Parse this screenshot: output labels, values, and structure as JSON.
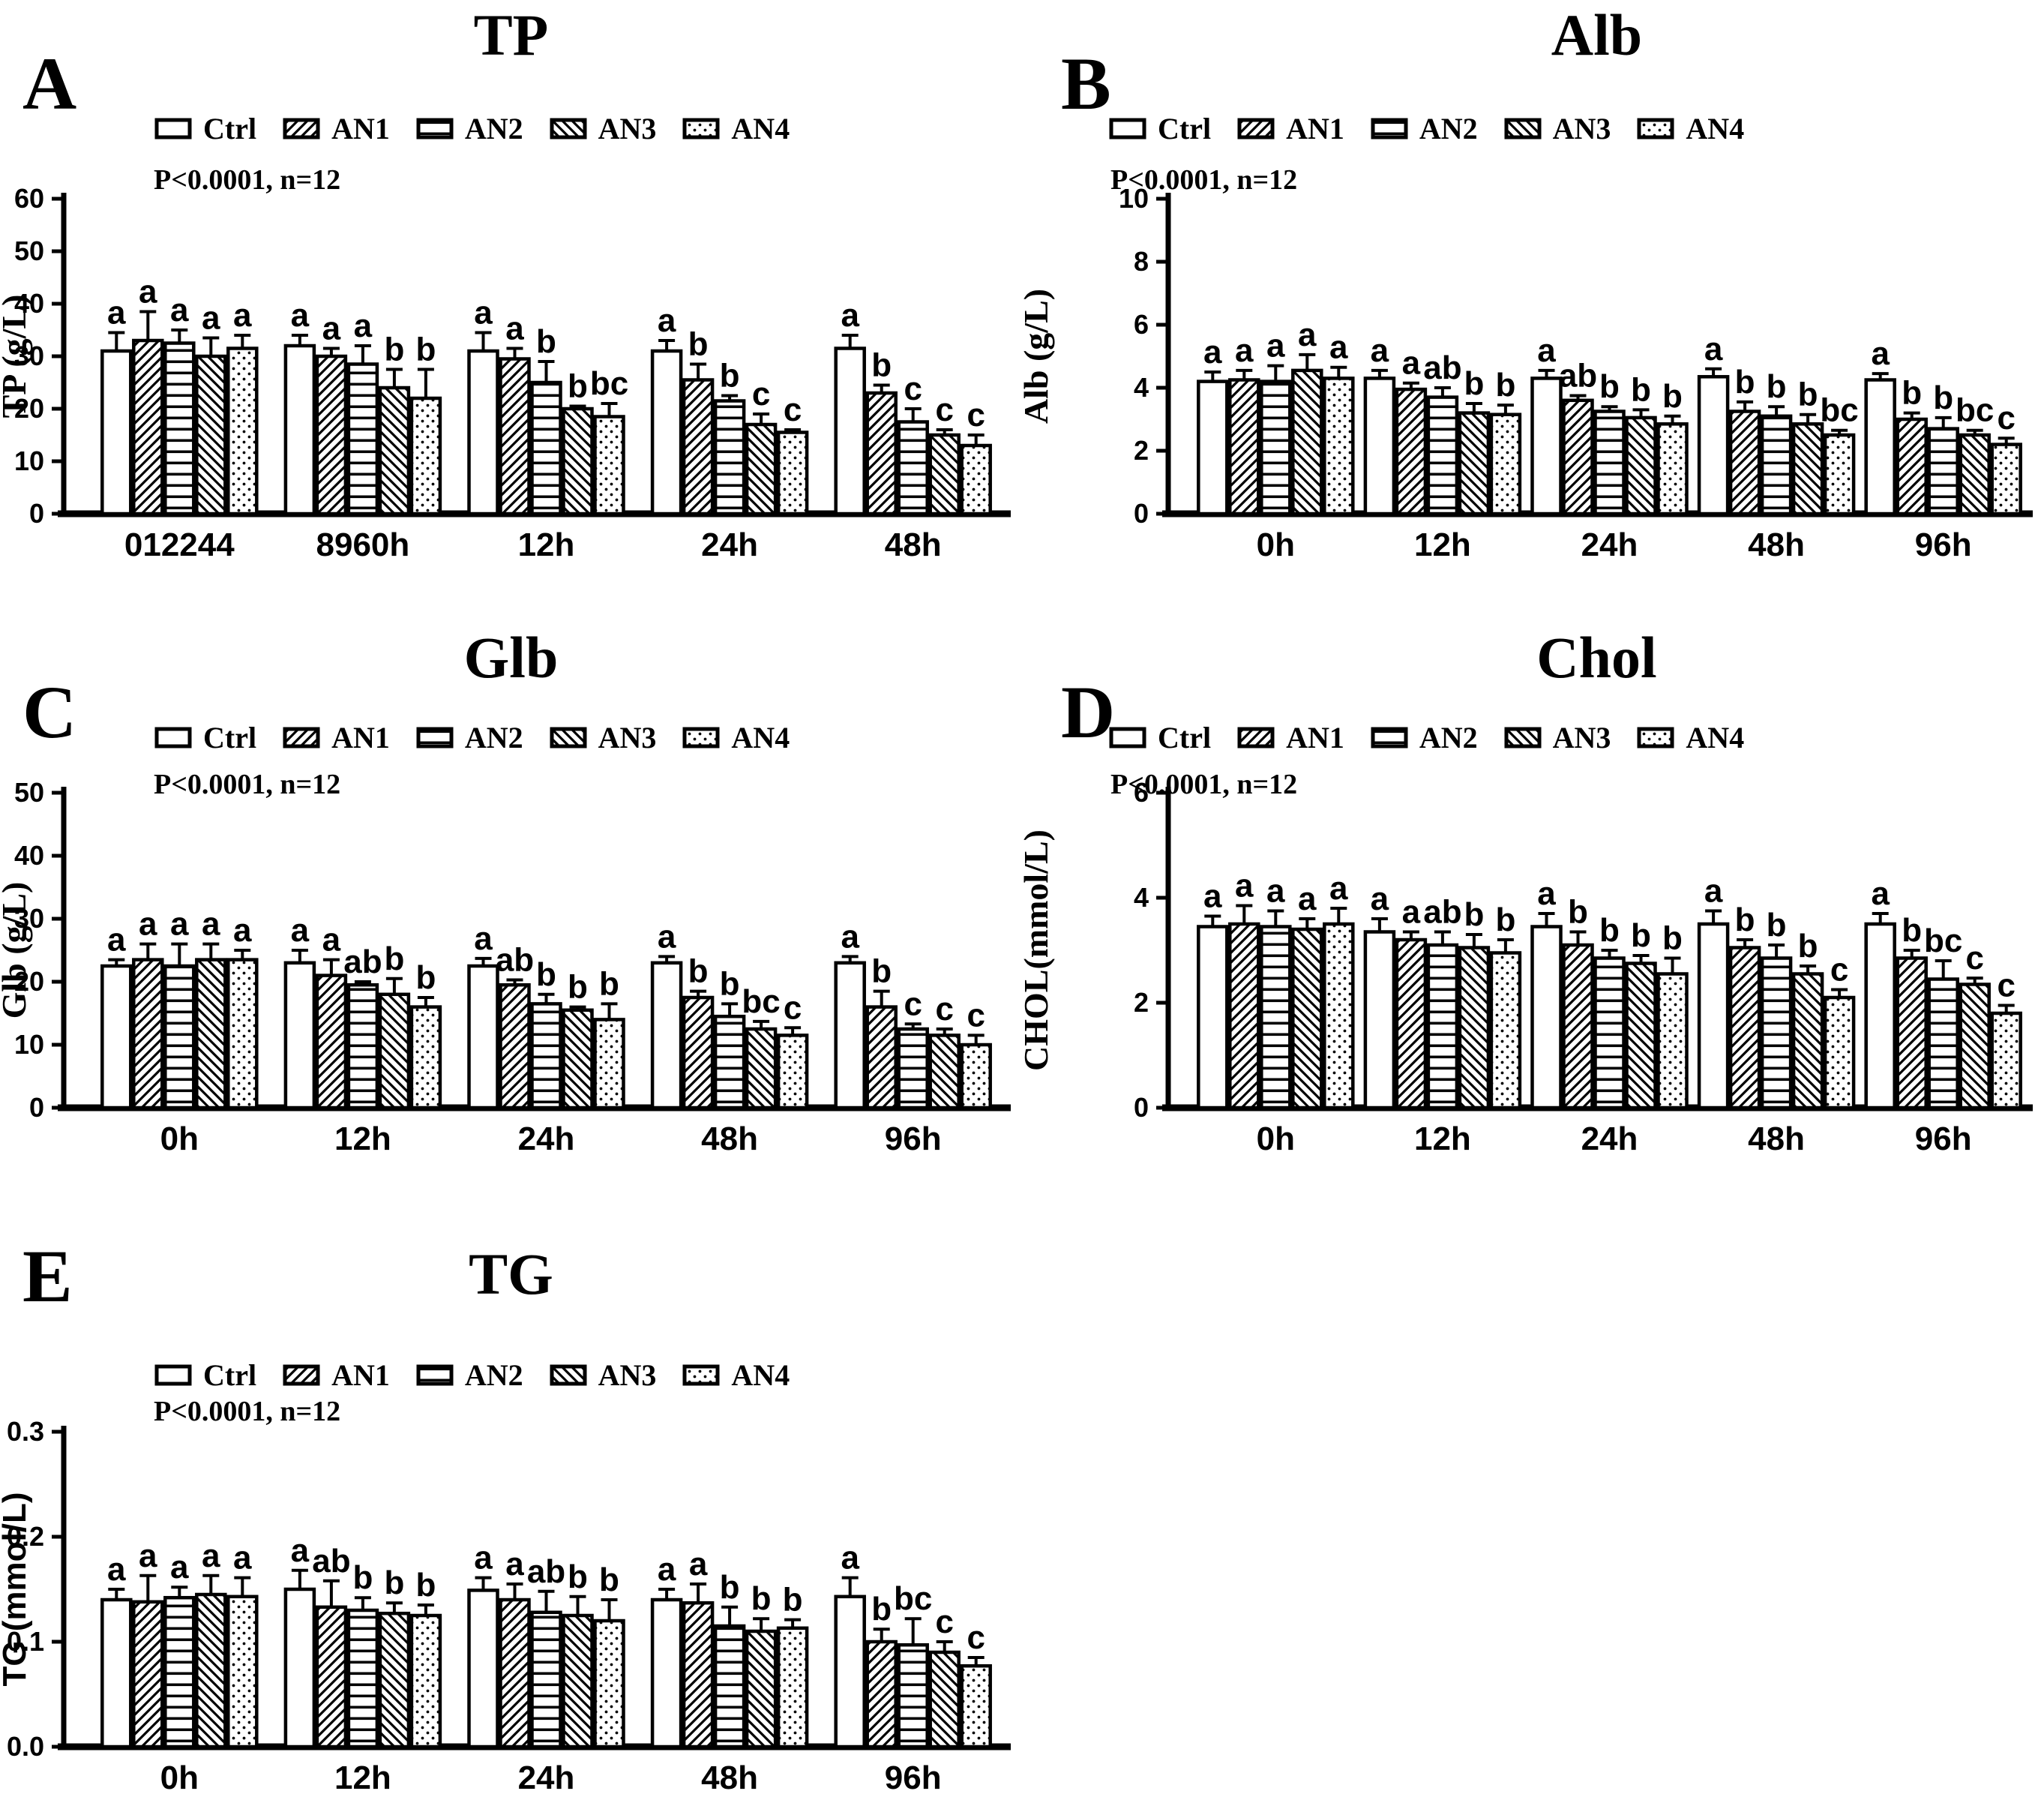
{
  "figure": {
    "pnote": "P<0.0001, n=12",
    "legend": {
      "items": [
        {
          "label": "Ctrl",
          "pattern": "plain"
        },
        {
          "label": "AN1",
          "pattern": "diag-up"
        },
        {
          "label": "AN2",
          "pattern": "hlines"
        },
        {
          "label": "AN3",
          "pattern": "diag-down"
        },
        {
          "label": "AN4",
          "pattern": "dots"
        }
      ]
    },
    "colors": {
      "ink": "#000000",
      "background": "#ffffff"
    }
  },
  "chart_data": [
    {
      "panel": "A",
      "type": "bar",
      "title": "TP",
      "ylabel": "TP (g/L)",
      "ylabel_style": "serif",
      "ylim": [
        0,
        60
      ],
      "ytick_values": [
        0,
        10,
        20,
        30,
        40,
        50,
        60
      ],
      "ytick_labels": [
        "0",
        "10",
        "20",
        "30",
        "40",
        "50",
        "60"
      ],
      "grid": false,
      "legend_position": "top",
      "categories": [
        "012244",
        "8960h",
        "12h",
        "24h",
        "48h"
      ],
      "series": [
        {
          "name": "Ctrl",
          "pattern": "plain",
          "values": [
            31,
            32,
            31,
            31,
            31.5
          ],
          "errors": [
            3.5,
            2,
            3.5,
            2,
            2.5
          ],
          "letters": [
            "a",
            "a",
            "a",
            "a",
            "a"
          ]
        },
        {
          "name": "AN1",
          "pattern": "diag-up",
          "values": [
            33,
            30,
            29.5,
            25.5,
            23
          ],
          "errors": [
            5.5,
            1.5,
            2,
            3,
            1.5
          ],
          "letters": [
            "a",
            "a",
            "a",
            "b",
            "b"
          ]
        },
        {
          "name": "AN2",
          "pattern": "hlines",
          "values": [
            32.5,
            28.5,
            25,
            21.5,
            17.5
          ],
          "errors": [
            2.5,
            3.5,
            4,
            1,
            2.5
          ],
          "letters": [
            "a",
            "a",
            "b",
            "b",
            "c"
          ]
        },
        {
          "name": "AN3",
          "pattern": "diag-down",
          "values": [
            30,
            24,
            20,
            17,
            15
          ],
          "errors": [
            3.5,
            3.5,
            0.5,
            2,
            1
          ],
          "letters": [
            "a",
            "b",
            "b",
            "c",
            "c"
          ]
        },
        {
          "name": "AN4",
          "pattern": "dots",
          "values": [
            31.5,
            22,
            18.5,
            15.5,
            13
          ],
          "errors": [
            2.5,
            5.5,
            2.5,
            0.5,
            2
          ],
          "letters": [
            "a",
            "b",
            "bc",
            "c",
            "c"
          ]
        }
      ]
    },
    {
      "panel": "B",
      "type": "bar",
      "title": "Alb",
      "ylabel": "Alb (g/L)",
      "ylabel_style": "serif",
      "ylim": [
        0,
        10
      ],
      "ytick_values": [
        0,
        2,
        4,
        6,
        8,
        10
      ],
      "ytick_labels": [
        "0",
        "2",
        "4",
        "6",
        "8",
        "10"
      ],
      "grid": false,
      "legend_position": "top",
      "categories": [
        "0h",
        "12h",
        "24h",
        "48h",
        "96h"
      ],
      "series": [
        {
          "name": "Ctrl",
          "pattern": "plain",
          "values": [
            4.2,
            4.3,
            4.3,
            4.35,
            4.25
          ],
          "errors": [
            0.3,
            0.25,
            0.25,
            0.25,
            0.2
          ],
          "letters": [
            "a",
            "a",
            "a",
            "a",
            "a"
          ]
        },
        {
          "name": "AN1",
          "pattern": "diag-up",
          "values": [
            4.25,
            3.95,
            3.6,
            3.25,
            3.0
          ],
          "errors": [
            0.3,
            0.2,
            0.15,
            0.3,
            0.2
          ],
          "letters": [
            "a",
            "a",
            "ab",
            "b",
            "b"
          ]
        },
        {
          "name": "AN2",
          "pattern": "hlines",
          "values": [
            4.2,
            3.7,
            3.25,
            3.1,
            2.7
          ],
          "errors": [
            0.5,
            0.3,
            0.15,
            0.3,
            0.35
          ],
          "letters": [
            "a",
            "ab",
            "b",
            "b",
            "b"
          ]
        },
        {
          "name": "AN3",
          "pattern": "diag-down",
          "values": [
            4.55,
            3.2,
            3.05,
            2.85,
            2.5
          ],
          "errors": [
            0.5,
            0.3,
            0.25,
            0.3,
            0.15
          ],
          "letters": [
            "a",
            "b",
            "b",
            "b",
            "bc"
          ]
        },
        {
          "name": "AN4",
          "pattern": "dots",
          "values": [
            4.3,
            3.15,
            2.85,
            2.5,
            2.2
          ],
          "errors": [
            0.35,
            0.3,
            0.25,
            0.15,
            0.2
          ],
          "letters": [
            "a",
            "b",
            "b",
            "bc",
            "c"
          ]
        }
      ]
    },
    {
      "panel": "C",
      "type": "bar",
      "title": "Glb",
      "ylabel": "Glb (g/L)",
      "ylabel_style": "serif",
      "ylim": [
        0,
        50
      ],
      "ytick_values": [
        0,
        10,
        20,
        30,
        40,
        50
      ],
      "ytick_labels": [
        "0",
        "10",
        "20",
        "30",
        "40",
        "50"
      ],
      "grid": false,
      "legend_position": "top",
      "categories": [
        "0h",
        "12h",
        "24h",
        "48h",
        "96h"
      ],
      "series": [
        {
          "name": "Ctrl",
          "pattern": "plain",
          "values": [
            22.5,
            23,
            22.5,
            23,
            23
          ],
          "errors": [
            1,
            2,
            1.2,
            1,
            1
          ],
          "letters": [
            "a",
            "a",
            "a",
            "a",
            "a"
          ]
        },
        {
          "name": "AN1",
          "pattern": "diag-up",
          "values": [
            23.5,
            21,
            19.5,
            17.5,
            16
          ],
          "errors": [
            2.5,
            2.5,
            0.8,
            1,
            2.5
          ],
          "letters": [
            "a",
            "a",
            "ab",
            "b",
            "b"
          ]
        },
        {
          "name": "AN2",
          "pattern": "hlines",
          "values": [
            22.5,
            19.5,
            16.5,
            14.5,
            12.5
          ],
          "errors": [
            3.5,
            0.5,
            1.5,
            2,
            0.8
          ],
          "letters": [
            "a",
            "ab",
            "b",
            "b",
            "c"
          ]
        },
        {
          "name": "AN3",
          "pattern": "diag-down",
          "values": [
            23.5,
            18,
            15.5,
            12.5,
            11.5
          ],
          "errors": [
            2.5,
            2.5,
            0.5,
            1.2,
            1
          ],
          "letters": [
            "a",
            "b",
            "b",
            "bc",
            "c"
          ]
        },
        {
          "name": "AN4",
          "pattern": "dots",
          "values": [
            23.5,
            16,
            14,
            11.5,
            10
          ],
          "errors": [
            1.5,
            1.5,
            2.5,
            1.2,
            1.5
          ],
          "letters": [
            "a",
            "b",
            "b",
            "c",
            "c"
          ]
        }
      ]
    },
    {
      "panel": "D",
      "type": "bar",
      "title": "Chol",
      "ylabel": "CHOL(mmol/L)",
      "ylabel_style": "serif",
      "ylim": [
        0,
        6
      ],
      "ytick_values": [
        0,
        2,
        4,
        6
      ],
      "ytick_labels": [
        "0",
        "2",
        "4",
        "6"
      ],
      "grid": false,
      "legend_position": "top",
      "categories": [
        "0h",
        "12h",
        "24h",
        "48h",
        "96h"
      ],
      "series": [
        {
          "name": "Ctrl",
          "pattern": "plain",
          "values": [
            3.45,
            3.35,
            3.45,
            3.5,
            3.5
          ],
          "errors": [
            0.2,
            0.25,
            0.25,
            0.25,
            0.2
          ],
          "letters": [
            "a",
            "a",
            "a",
            "a",
            "a"
          ]
        },
        {
          "name": "AN1",
          "pattern": "diag-up",
          "values": [
            3.5,
            3.2,
            3.1,
            3.05,
            2.85
          ],
          "errors": [
            0.35,
            0.15,
            0.25,
            0.15,
            0.15
          ],
          "letters": [
            "a",
            "a",
            "b",
            "b",
            "b"
          ]
        },
        {
          "name": "AN2",
          "pattern": "hlines",
          "values": [
            3.45,
            3.1,
            2.85,
            2.85,
            2.45
          ],
          "errors": [
            0.3,
            0.25,
            0.15,
            0.25,
            0.35
          ],
          "letters": [
            "a",
            "ab",
            "b",
            "b",
            "bc"
          ]
        },
        {
          "name": "AN3",
          "pattern": "diag-down",
          "values": [
            3.4,
            3.05,
            2.75,
            2.55,
            2.35
          ],
          "errors": [
            0.2,
            0.25,
            0.15,
            0.15,
            0.12
          ],
          "letters": [
            "a",
            "b",
            "b",
            "b",
            "c"
          ]
        },
        {
          "name": "AN4",
          "pattern": "dots",
          "values": [
            3.5,
            2.95,
            2.55,
            2.1,
            1.8
          ],
          "errors": [
            0.3,
            0.25,
            0.3,
            0.15,
            0.15
          ],
          "letters": [
            "a",
            "b",
            "b",
            "c",
            "c"
          ]
        }
      ]
    },
    {
      "panel": "E",
      "type": "bar",
      "title": "TG",
      "ylabel": "TG (mmol/L)",
      "ylabel_style": "sans",
      "ylim": [
        0,
        0.3
      ],
      "ytick_values": [
        0,
        0.1,
        0.2,
        0.3
      ],
      "ytick_labels": [
        "0.0",
        "0.1",
        "0.2",
        "0.3"
      ],
      "grid": false,
      "legend_position": "top",
      "categories": [
        "0h",
        "12h",
        "24h",
        "48h",
        "96h"
      ],
      "series": [
        {
          "name": "Ctrl",
          "pattern": "plain",
          "values": [
            0.14,
            0.15,
            0.149,
            0.14,
            0.143
          ],
          "errors": [
            0.01,
            0.018,
            0.012,
            0.01,
            0.018
          ],
          "letters": [
            "a",
            "a",
            "a",
            "a",
            "a"
          ]
        },
        {
          "name": "AN1",
          "pattern": "diag-up",
          "values": [
            0.138,
            0.133,
            0.14,
            0.137,
            0.1
          ],
          "errors": [
            0.025,
            0.025,
            0.015,
            0.018,
            0.012
          ],
          "letters": [
            "a",
            "ab",
            "a",
            "a",
            "b"
          ]
        },
        {
          "name": "AN2",
          "pattern": "hlines",
          "values": [
            0.142,
            0.13,
            0.128,
            0.115,
            0.097
          ],
          "errors": [
            0.01,
            0.012,
            0.02,
            0.018,
            0.025
          ],
          "letters": [
            "a",
            "b",
            "ab",
            "b",
            "bc"
          ]
        },
        {
          "name": "AN3",
          "pattern": "diag-down",
          "values": [
            0.145,
            0.127,
            0.125,
            0.11,
            0.09
          ],
          "errors": [
            0.018,
            0.01,
            0.018,
            0.012,
            0.01
          ],
          "letters": [
            "a",
            "b",
            "b",
            "b",
            "c"
          ]
        },
        {
          "name": "AN4",
          "pattern": "dots",
          "values": [
            0.143,
            0.125,
            0.12,
            0.113,
            0.077
          ],
          "errors": [
            0.018,
            0.01,
            0.02,
            0.008,
            0.008
          ],
          "letters": [
            "a",
            "b",
            "b",
            "b",
            "c"
          ]
        }
      ]
    }
  ]
}
